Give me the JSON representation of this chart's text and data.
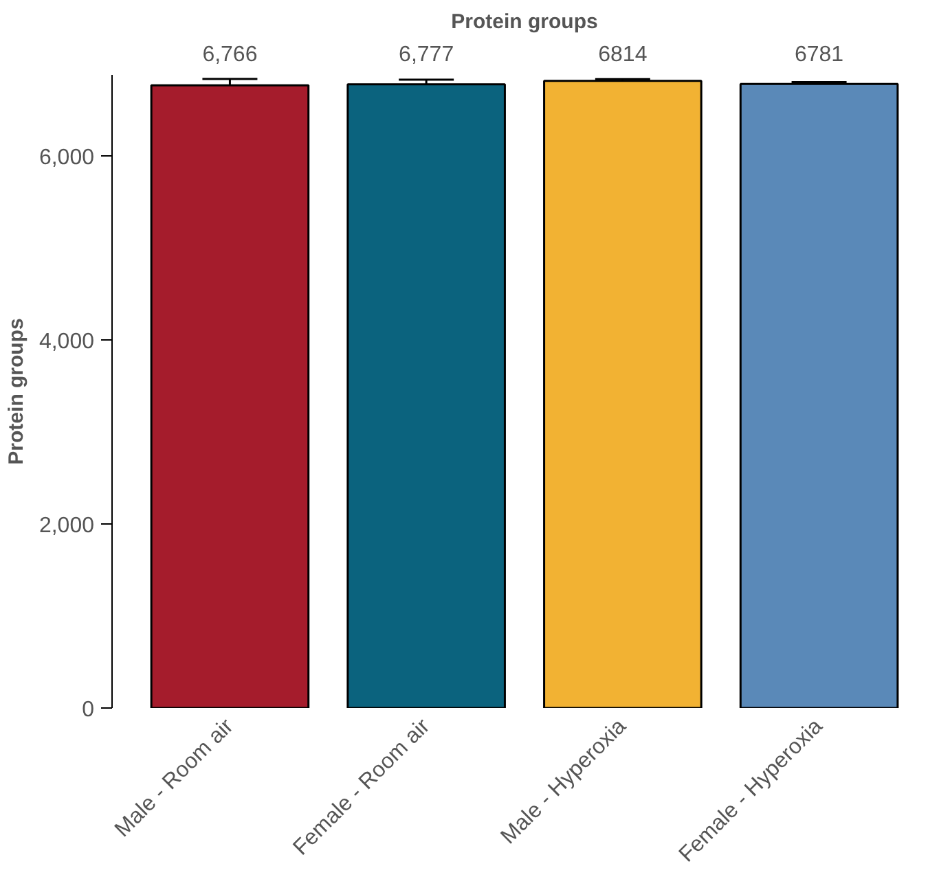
{
  "chart_data": {
    "type": "bar",
    "title": "Protein groups",
    "ylabel": "Protein groups",
    "categories": [
      "Male - Room air",
      "Female - Room air",
      "Male - Hyperoxia",
      "Female - Hyperoxia"
    ],
    "values": [
      6766,
      6777,
      6814,
      6781
    ],
    "value_labels": [
      "6,766",
      "6,777",
      "6814",
      "6781"
    ],
    "errors": [
      70,
      50,
      20,
      20
    ],
    "colors": [
      "#a51c2c",
      "#0b637e",
      "#f2b233",
      "#5a89b8"
    ],
    "ylim": [
      0,
      6880
    ],
    "yticks": [
      {
        "value": 0,
        "label": "0"
      },
      {
        "value": 2000,
        "label": "2,000"
      },
      {
        "value": 4000,
        "label": "4,000"
      },
      {
        "value": 6000,
        "label": "6,000"
      }
    ],
    "grid": false
  }
}
